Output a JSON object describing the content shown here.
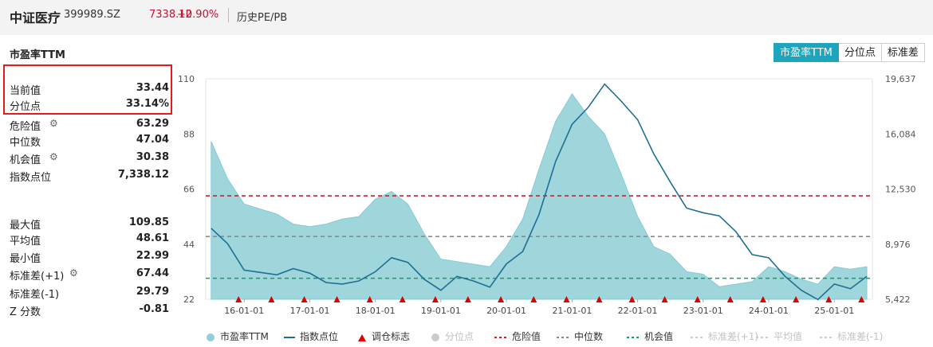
{
  "header": {
    "index_name": "中证医疗",
    "code": "399989.SZ",
    "price": "7338.12",
    "change": "+0.90%",
    "history_link": "历史PE/PB"
  },
  "panel": {
    "title": "市盈率TTM",
    "stats": [
      {
        "label": "当前值",
        "value": "33.44",
        "gear": false
      },
      {
        "label": "分位点",
        "value": "33.14%",
        "gear": false
      },
      {
        "label": "危险值",
        "value": "63.29",
        "gear": true
      },
      {
        "label": "中位数",
        "value": "47.04",
        "gear": false
      },
      {
        "label": "机会值",
        "value": "30.38",
        "gear": true
      },
      {
        "label": "指数点位",
        "value": "7,338.12",
        "gear": false
      },
      {
        "label": "最大值",
        "value": "109.85",
        "gear": false
      },
      {
        "label": "平均值",
        "value": "48.61",
        "gear": false
      },
      {
        "label": "最小值",
        "value": "22.99",
        "gear": false
      },
      {
        "label": "标准差(+1)",
        "value": "67.44",
        "gear": true
      },
      {
        "label": "标准差(-1)",
        "value": "29.79",
        "gear": false
      },
      {
        "label": "Z 分数",
        "value": "-0.81",
        "gear": false
      }
    ]
  },
  "tabs": [
    "市盈率TTM",
    "分位点",
    "标准差"
  ],
  "colors": {
    "pe_area": "#9fd6dc",
    "index_line": "#1f6f94",
    "danger": "#c0262d",
    "median": "#8a8a8a",
    "opportunity": "#1e9a63",
    "marker": "#e00000",
    "accent": "#1ea5be"
  },
  "chart_data": {
    "type": "area",
    "x_tick_labels": [
      "16-01-01",
      "17-01-01",
      "18-01-01",
      "19-01-01",
      "20-01-01",
      "21-01-01",
      "22-01-01",
      "23-01-01",
      "24-01-01",
      "25-01-01"
    ],
    "x": [
      "2015-07",
      "2015-10",
      "2016-01",
      "2016-04",
      "2016-07",
      "2016-10",
      "2017-01",
      "2017-04",
      "2017-07",
      "2017-10",
      "2018-01",
      "2018-04",
      "2018-07",
      "2018-10",
      "2019-01",
      "2019-04",
      "2019-07",
      "2019-10",
      "2020-01",
      "2020-04",
      "2020-07",
      "2020-10",
      "2021-01",
      "2021-04",
      "2021-07",
      "2021-10",
      "2022-01",
      "2022-04",
      "2022-07",
      "2022-10",
      "2023-01",
      "2023-04",
      "2023-07",
      "2023-10",
      "2024-01",
      "2024-04",
      "2024-07",
      "2024-10",
      "2025-01",
      "2025-04",
      "2025-07"
    ],
    "left_axis": {
      "label": "",
      "ticks": [
        22,
        44,
        66,
        88,
        110
      ],
      "ylim": [
        22,
        110
      ]
    },
    "right_axis": {
      "label": "",
      "ticks": [
        "5,422",
        "8,976",
        "12,530",
        "16,084",
        "19,637"
      ],
      "ylim": [
        5422,
        19637
      ]
    },
    "series": [
      {
        "name": "市盈率TTM",
        "axis": "left",
        "kind": "area",
        "values": [
          85,
          70,
          60,
          58,
          56,
          52,
          51,
          52,
          54,
          55,
          62,
          65,
          60,
          48,
          38,
          37,
          36,
          35,
          43,
          54,
          74,
          93,
          104,
          95,
          88,
          72,
          55,
          43,
          40,
          33,
          32,
          27,
          28,
          29,
          35,
          33,
          30,
          28,
          35,
          34,
          35
        ]
      },
      {
        "name": "指数点位",
        "axis": "right",
        "kind": "line",
        "values": [
          10000,
          9000,
          7300,
          7150,
          7000,
          7400,
          7100,
          6500,
          6400,
          6600,
          7200,
          8100,
          7800,
          6700,
          6000,
          6900,
          6600,
          6200,
          7700,
          8500,
          10900,
          14300,
          16700,
          17800,
          19300,
          18200,
          17000,
          14800,
          13000,
          11300,
          11000,
          10800,
          9800,
          8300,
          8100,
          6900,
          6000,
          5400,
          6400,
          6100,
          6900
        ]
      }
    ],
    "reference_lines": [
      {
        "name": "危险值",
        "value": 63.29
      },
      {
        "name": "中位数",
        "value": 47.04
      },
      {
        "name": "机会值",
        "value": 30.38
      }
    ],
    "rebalance_markers": [
      "2015-12",
      "2016-06",
      "2016-12",
      "2017-06",
      "2017-12",
      "2018-06",
      "2018-12",
      "2019-06",
      "2019-12",
      "2020-06",
      "2020-12",
      "2021-06",
      "2021-12",
      "2022-06",
      "2022-12",
      "2023-06",
      "2023-12",
      "2024-06",
      "2024-12",
      "2025-06"
    ],
    "legend": [
      {
        "label": "市盈率TTM",
        "dim": false,
        "marker": "circle",
        "color": "#8fd0d8"
      },
      {
        "label": "指数点位",
        "dim": false,
        "marker": "line",
        "color": "#1f6f94"
      },
      {
        "label": "调仓标志",
        "dim": false,
        "marker": "triangle",
        "color": "#e00000"
      },
      {
        "label": "分位点",
        "dim": true,
        "marker": "circle",
        "color": "#cccccc"
      },
      {
        "label": "危险值",
        "dim": false,
        "marker": "dash",
        "color": "#c0262d"
      },
      {
        "label": "中位数",
        "dim": false,
        "marker": "dash",
        "color": "#8a8a8a"
      },
      {
        "label": "机会值",
        "dim": false,
        "marker": "dash",
        "color": "#1e9a63"
      },
      {
        "label": "标准差(+1)",
        "dim": true,
        "marker": "dash",
        "color": "#cccccc"
      },
      {
        "label": "平均值",
        "dim": true,
        "marker": "dash",
        "color": "#cccccc"
      },
      {
        "label": "标准差(-1)",
        "dim": true,
        "marker": "dash",
        "color": "#cccccc"
      }
    ]
  }
}
